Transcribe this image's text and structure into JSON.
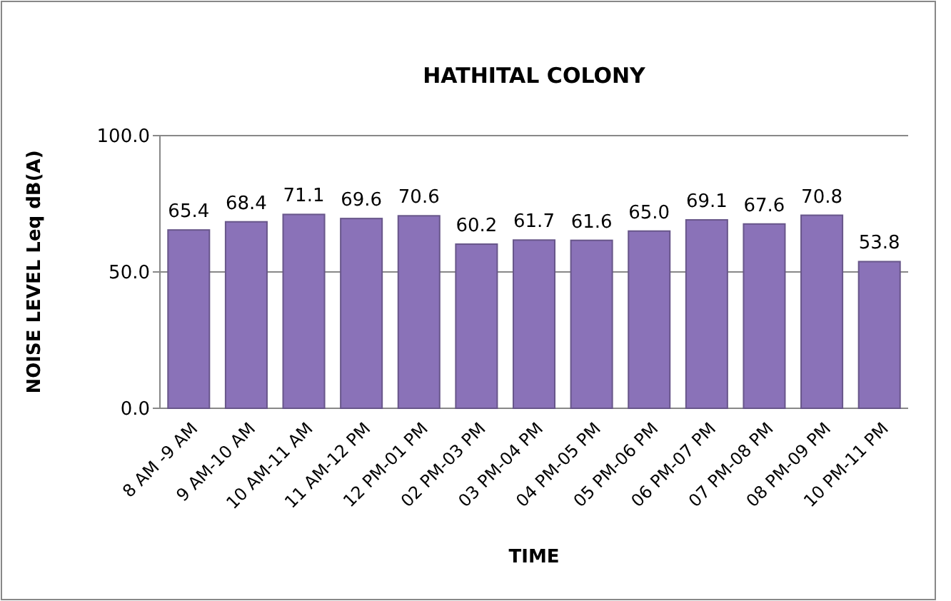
{
  "chart_data": {
    "type": "bar",
    "title": "HATHITAL COLONY",
    "xlabel": "TIME",
    "ylabel": "NOISE LEVEL Leq dB(A)",
    "categories": [
      "8 AM -9 AM",
      "9 AM-10 AM",
      "10 AM-11 AM",
      "11 AM-12 PM",
      "12 PM-01 PM",
      "02 PM-03 PM",
      "03 PM-04 PM",
      "04 PM-05 PM",
      "05 PM-06 PM",
      "06 PM-07 PM",
      "07 PM-08 PM",
      "08 PM-09 PM",
      "10 PM-11 PM"
    ],
    "values": [
      65.4,
      68.4,
      71.1,
      69.6,
      70.6,
      60.2,
      61.7,
      61.6,
      65.0,
      69.1,
      67.6,
      70.8,
      53.8
    ],
    "value_labels": [
      "65.4",
      "68.4",
      "71.1",
      "69.6",
      "70.6",
      "60.2",
      "61.7",
      "61.6",
      "65.0",
      "69.1",
      "67.6",
      "70.8",
      "53.8"
    ],
    "color": "#8a72b8",
    "ylim": [
      0,
      100
    ],
    "yticks": [
      {
        "value": 0,
        "label": "0.0"
      },
      {
        "value": 50,
        "label": "50.0"
      },
      {
        "value": 100,
        "label": "100.0"
      }
    ],
    "grid": "y"
  }
}
